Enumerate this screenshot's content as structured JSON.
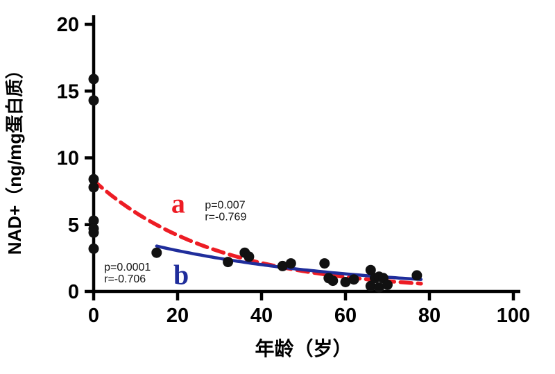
{
  "figure": {
    "background": "#ffffff"
  },
  "chart_data": {
    "type": "scatter",
    "title": "",
    "xlabel": "年龄（岁）",
    "ylabel": "NAD+（ng/mg蛋白质）",
    "xlim": [
      0,
      100
    ],
    "ylim": [
      0,
      20
    ],
    "xticks": [
      0,
      20,
      40,
      60,
      80,
      100
    ],
    "yticks": [
      0,
      5,
      10,
      15,
      20
    ],
    "grid": false,
    "axis_color": "#000000",
    "point_color": "#111111",
    "point_radius": 7.5,
    "points": [
      [
        0,
        15.9
      ],
      [
        0,
        14.3
      ],
      [
        0,
        8.4
      ],
      [
        0,
        7.8
      ],
      [
        0,
        5.3
      ],
      [
        0,
        4.7
      ],
      [
        0,
        4.4
      ],
      [
        0,
        3.2
      ],
      [
        15,
        2.9
      ],
      [
        32,
        2.2
      ],
      [
        36,
        2.9
      ],
      [
        37,
        2.6
      ],
      [
        45,
        1.9
      ],
      [
        47,
        2.1
      ],
      [
        55,
        2.1
      ],
      [
        56,
        1.0
      ],
      [
        57,
        0.8
      ],
      [
        60,
        0.7
      ],
      [
        62,
        0.9
      ],
      [
        66,
        1.6
      ],
      [
        66,
        0.4
      ],
      [
        67,
        1.0
      ],
      [
        68,
        1.1
      ],
      [
        68,
        0.3
      ],
      [
        69,
        1.0
      ],
      [
        70,
        0.5
      ],
      [
        77,
        1.2
      ]
    ],
    "curves": [
      {
        "id": "a",
        "label": "a",
        "color": "#ed1c24",
        "style": "dashed",
        "dash": "16 9",
        "width": 5.5,
        "fit": {
          "type": "exp",
          "A": 8.3,
          "k": 0.034
        },
        "x_range": [
          0,
          78
        ],
        "p": "p=0.007",
        "r": "r=-0.769"
      },
      {
        "id": "b",
        "label": "b",
        "color": "#1f2d9b",
        "style": "solid",
        "dash": null,
        "width": 4.5,
        "fit": {
          "type": "exp",
          "A": 4.66,
          "k": 0.0211
        },
        "x_range": [
          15,
          78
        ],
        "p": "p=0.0001",
        "r": "r=-0.706"
      }
    ],
    "annotations": [
      {
        "id": "curve-a-label",
        "lines": [
          "a"
        ],
        "x": 18.5,
        "y": 5.9,
        "color": "#ed1c24",
        "size": 40,
        "bold": true,
        "serif": true,
        "line_gap": 18
      },
      {
        "id": "curve-a-stats",
        "lines": [
          "p=0.007",
          "r=-0.769"
        ],
        "x": 26.5,
        "y": 6.2,
        "color": "#111111",
        "size": 16,
        "bold": false,
        "serif": false,
        "line_gap": 17
      },
      {
        "id": "curve-b-label",
        "lines": [
          "b"
        ],
        "x": 19.0,
        "y": 0.55,
        "color": "#1f2d9b",
        "size": 40,
        "bold": true,
        "serif": true,
        "line_gap": 18
      },
      {
        "id": "curve-b-stats",
        "lines": [
          "p=0.0001",
          "r=-0.706"
        ],
        "x": 2.5,
        "y": 1.55,
        "color": "#111111",
        "size": 16,
        "bold": false,
        "serif": false,
        "line_gap": 17
      }
    ]
  }
}
